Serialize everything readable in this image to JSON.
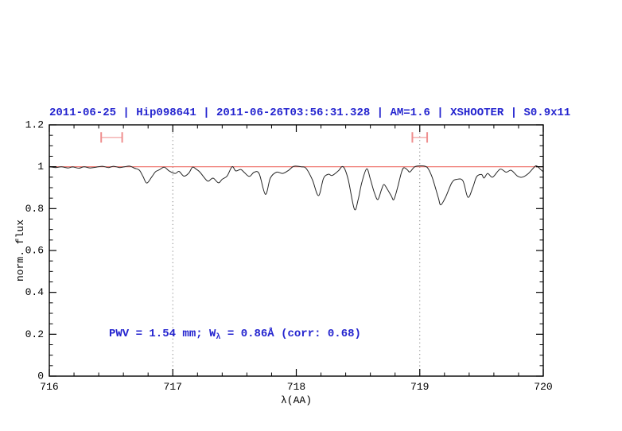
{
  "annotation": {
    "prefix": "PWV = 1.54 mm; W",
    "subscript": "λ",
    "suffix": " = 0.86Å (corr: 0.68)"
  },
  "colors": {
    "title_blue": "#2424cf",
    "annotation_blue": "#2424cf",
    "continuum_red": "#ee6e66",
    "marker_pink": "#ef8f8f",
    "spectrum_black": "#262626",
    "guide_gray": "#808080",
    "axis_black": "#000000"
  },
  "chart_data": {
    "type": "line",
    "title": "2011-06-25 | Hip098641 | 2011-06-26T03:56:31.328 | AM=1.6 | XSHOOTER | S0.9x11",
    "xlabel": "λ(AA)",
    "ylabel": "norm. flux",
    "xlim": [
      716,
      720
    ],
    "ylim": [
      0,
      1.2
    ],
    "grid": "off",
    "legend": "none",
    "x_major_ticks": [
      716,
      717,
      718,
      719,
      720
    ],
    "x_tick_labels": [
      "716",
      "717",
      "718",
      "719",
      "720"
    ],
    "x_minor_step": 0.2,
    "y_major_ticks": [
      0,
      0.2,
      0.4,
      0.6,
      0.8,
      1,
      1.2
    ],
    "y_tick_labels": [
      "0",
      "0.2",
      "0.4",
      "0.6",
      "0.8",
      "1",
      "1.2"
    ],
    "y_minor_step": 0.05,
    "dotted_guides_x": [
      717,
      719
    ],
    "continuum_level": 1.0,
    "range_markers": [
      {
        "x_start": 716.42,
        "x_end": 716.59,
        "y_center": 1.14,
        "y_half_height": 0.025
      },
      {
        "x_start": 718.94,
        "x_end": 719.06,
        "y_center": 1.14,
        "y_half_height": 0.025
      }
    ],
    "series": [
      {
        "name": "spectrum",
        "points": [
          [
            716.0,
            1.0
          ],
          [
            716.05,
            0.996
          ],
          [
            716.1,
            1.0
          ],
          [
            716.15,
            0.994
          ],
          [
            716.19,
            0.999
          ],
          [
            716.24,
            0.993
          ],
          [
            716.28,
            1.0
          ],
          [
            716.33,
            0.994
          ],
          [
            716.38,
            0.998
          ],
          [
            716.43,
            1.002
          ],
          [
            716.48,
            0.996
          ],
          [
            716.52,
            1.002
          ],
          [
            716.57,
            0.996
          ],
          [
            716.61,
            1.0
          ],
          [
            716.65,
            1.003
          ],
          [
            716.69,
            0.993
          ],
          [
            716.73,
            0.983
          ],
          [
            716.76,
            0.952
          ],
          [
            716.79,
            0.922
          ],
          [
            716.83,
            0.952
          ],
          [
            716.86,
            0.976
          ],
          [
            716.89,
            0.985
          ],
          [
            716.93,
            0.998
          ],
          [
            716.97,
            0.98
          ],
          [
            717.02,
            0.968
          ],
          [
            717.05,
            0.978
          ],
          [
            717.09,
            0.955
          ],
          [
            717.13,
            0.97
          ],
          [
            717.16,
            0.998
          ],
          [
            717.19,
            0.988
          ],
          [
            717.22,
            0.974
          ],
          [
            717.28,
            0.932
          ],
          [
            717.31,
            0.941
          ],
          [
            717.33,
            0.945
          ],
          [
            717.37,
            0.923
          ],
          [
            717.4,
            0.94
          ],
          [
            717.44,
            0.956
          ],
          [
            717.48,
            1.0
          ],
          [
            717.51,
            0.98
          ],
          [
            717.55,
            0.987
          ],
          [
            717.58,
            0.972
          ],
          [
            717.62,
            0.954
          ],
          [
            717.66,
            0.974
          ],
          [
            717.7,
            0.966
          ],
          [
            717.75,
            0.868
          ],
          [
            717.79,
            0.946
          ],
          [
            717.84,
            0.974
          ],
          [
            717.89,
            0.968
          ],
          [
            717.94,
            0.984
          ],
          [
            717.98,
            1.002
          ],
          [
            718.04,
            1.0
          ],
          [
            718.08,
            0.992
          ],
          [
            718.13,
            0.938
          ],
          [
            718.18,
            0.862
          ],
          [
            718.22,
            0.944
          ],
          [
            718.26,
            0.964
          ],
          [
            718.29,
            0.958
          ],
          [
            718.34,
            0.98
          ],
          [
            718.38,
            1.0
          ],
          [
            718.42,
            0.94
          ],
          [
            718.47,
            0.798
          ],
          [
            718.5,
            0.84
          ],
          [
            718.53,
            0.923
          ],
          [
            718.57,
            0.99
          ],
          [
            718.6,
            0.94
          ],
          [
            718.63,
            0.88
          ],
          [
            718.66,
            0.843
          ],
          [
            718.69,
            0.89
          ],
          [
            718.71,
            0.915
          ],
          [
            718.74,
            0.89
          ],
          [
            718.77,
            0.86
          ],
          [
            718.79,
            0.843
          ],
          [
            718.82,
            0.9
          ],
          [
            718.85,
            0.97
          ],
          [
            718.87,
            0.995
          ],
          [
            718.9,
            0.985
          ],
          [
            718.92,
            0.975
          ],
          [
            718.96,
            1.0
          ],
          [
            719.01,
            1.004
          ],
          [
            719.06,
            0.997
          ],
          [
            719.1,
            0.95
          ],
          [
            719.15,
            0.853
          ],
          [
            719.17,
            0.818
          ],
          [
            719.21,
            0.856
          ],
          [
            719.26,
            0.924
          ],
          [
            719.3,
            0.94
          ],
          [
            719.35,
            0.932
          ],
          [
            719.39,
            0.854
          ],
          [
            719.43,
            0.902
          ],
          [
            719.46,
            0.952
          ],
          [
            719.5,
            0.963
          ],
          [
            719.52,
            0.946
          ],
          [
            719.55,
            0.968
          ],
          [
            719.59,
            0.95
          ],
          [
            719.65,
            0.988
          ],
          [
            719.7,
            0.974
          ],
          [
            719.74,
            0.983
          ],
          [
            719.79,
            0.956
          ],
          [
            719.83,
            0.95
          ],
          [
            719.88,
            0.968
          ],
          [
            719.93,
            1.0
          ],
          [
            719.95,
            1.003
          ],
          [
            719.98,
            0.986
          ],
          [
            720.0,
            0.976
          ]
        ]
      }
    ]
  }
}
